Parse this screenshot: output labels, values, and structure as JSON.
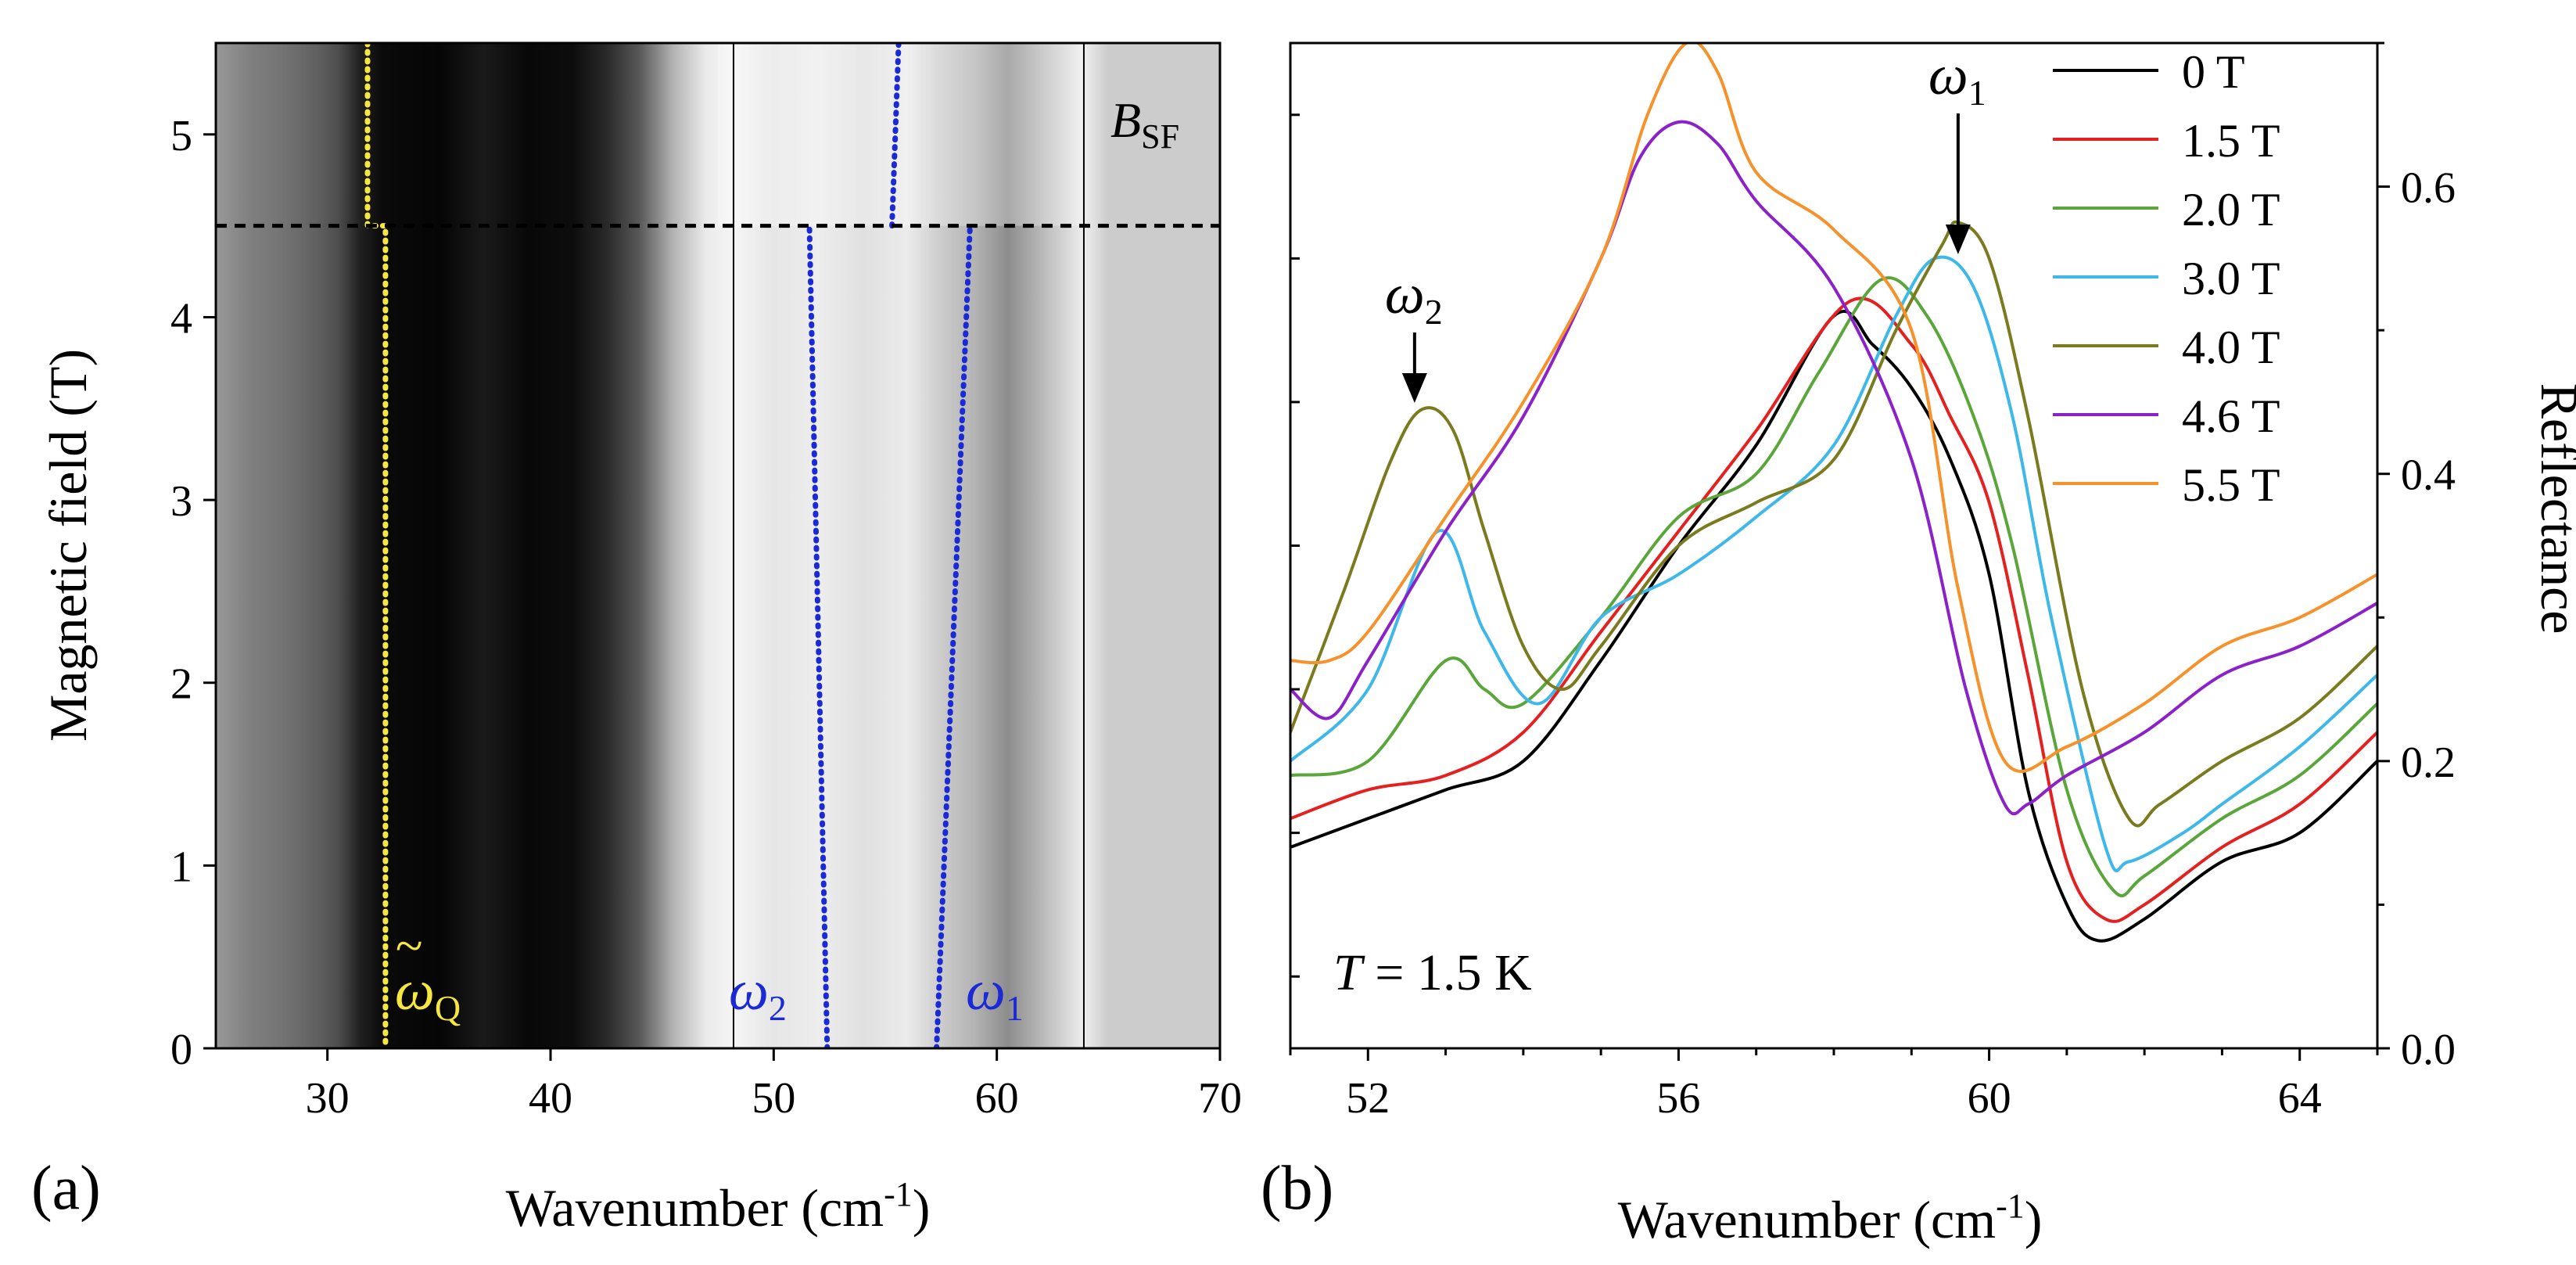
{
  "chart_data": [
    {
      "panel": "(a)",
      "type": "heatmap",
      "xlabel": "Wavenumber (cm",
      "xlabel_sup": "-1",
      "xlabel_close": ")",
      "ylabel": "Magnetic field (T)",
      "xlim": [
        25,
        70
      ],
      "ylim": [
        0,
        5.5
      ],
      "xticks": [
        30,
        40,
        50,
        60,
        70
      ],
      "yticks": [
        0,
        1,
        2,
        3,
        4,
        5
      ],
      "colormap": "grayscale (black = low, white = high)",
      "intensity_profile": [
        {
          "x": 25.0,
          "v": 0.6
        },
        {
          "x": 26.5,
          "v": 0.5
        },
        {
          "x": 28.0,
          "v": 0.45
        },
        {
          "x": 29.5,
          "v": 0.38
        },
        {
          "x": 30.5,
          "v": 0.3
        },
        {
          "x": 31.5,
          "v": 0.12
        },
        {
          "x": 32.5,
          "v": 0.04
        },
        {
          "x": 35.0,
          "v": 0.02
        },
        {
          "x": 37.0,
          "v": 0.1
        },
        {
          "x": 39.0,
          "v": 0.03
        },
        {
          "x": 41.0,
          "v": 0.05
        },
        {
          "x": 42.5,
          "v": 0.16
        },
        {
          "x": 44.0,
          "v": 0.35
        },
        {
          "x": 45.5,
          "v": 0.7
        },
        {
          "x": 47.0,
          "v": 0.92
        },
        {
          "x": 48.2,
          "v": 0.96
        },
        {
          "x": 50.0,
          "v": 0.9
        },
        {
          "x": 52.0,
          "v": 0.93
        },
        {
          "x": 54.0,
          "v": 0.88
        },
        {
          "x": 56.0,
          "v": 0.92
        },
        {
          "x": 57.5,
          "v": 0.8
        },
        {
          "x": 59.0,
          "v": 0.7
        },
        {
          "x": 60.5,
          "v": 0.55
        },
        {
          "x": 62.0,
          "v": 0.72
        },
        {
          "x": 63.9,
          "v": 0.93
        },
        {
          "x": 65.0,
          "v": 0.8
        },
        {
          "x": 70.0,
          "v": 0.8
        }
      ],
      "panel_dividers_x": [
        48.2,
        63.9
      ],
      "spin_flop_field": 4.5,
      "annotations": {
        "bsf": "B",
        "bsf_sub": "SF",
        "omega_q": "ω",
        "omega_q_sub": "Q",
        "omega_q_tilde": "~",
        "omega_2": "ω",
        "omega_2_sub": "2",
        "omega_1": "ω",
        "omega_1_sub": "1"
      },
      "mode_lines": [
        {
          "name": "omega_Q",
          "color": "#f5e642",
          "points": [
            [
              31.8,
              5.5
            ],
            [
              31.8,
              4.5
            ],
            [
              32.6,
              4.5
            ],
            [
              32.6,
              0
            ]
          ]
        },
        {
          "name": "omega_2",
          "color": "#1a2bd6",
          "points": [
            [
              52.4,
              0
            ],
            [
              51.6,
              4.5
            ]
          ]
        },
        {
          "name": "omega_1",
          "color": "#1a2bd6",
          "points": [
            [
              57.3,
              0
            ],
            [
              58.8,
              4.5
            ]
          ]
        },
        {
          "name": "omega_SF",
          "color": "#1a2bd6",
          "points": [
            [
              55.3,
              4.5
            ],
            [
              55.6,
              5.5
            ]
          ]
        }
      ]
    },
    {
      "panel": "(b)",
      "type": "line",
      "xlabel": "Wavenumber (cm",
      "xlabel_sup": "-1",
      "xlabel_close": ")",
      "ylabel": "Reflectance",
      "xlim": [
        51,
        65
      ],
      "ylim": [
        0,
        0.7
      ],
      "xticks": [
        52,
        56,
        60,
        64
      ],
      "yticks": [
        0.0,
        0.2,
        0.4,
        0.6
      ],
      "yaxis_side": "right",
      "annotation_temp": "T",
      "annotation_temp_value": " = 1.5 K",
      "arrow_omega2": {
        "label": "ω",
        "sub": "2",
        "x": 52.6
      },
      "arrow_omega1": {
        "label": "ω",
        "sub": "1",
        "x": 59.6
      },
      "legend_position": "top-right",
      "series": [
        {
          "name": "0 T",
          "color": "#000000",
          "points": [
            [
              51,
              0.14
            ],
            [
              52,
              0.16
            ],
            [
              53,
              0.18
            ],
            [
              54,
              0.2
            ],
            [
              55,
              0.27
            ],
            [
              56,
              0.35
            ],
            [
              57,
              0.42
            ],
            [
              58,
              0.51
            ],
            [
              58.5,
              0.49
            ],
            [
              59,
              0.46
            ],
            [
              59.5,
              0.41
            ],
            [
              60,
              0.33
            ],
            [
              60.5,
              0.18
            ],
            [
              61,
              0.1
            ],
            [
              61.4,
              0.075
            ],
            [
              62,
              0.09
            ],
            [
              63,
              0.13
            ],
            [
              64,
              0.15
            ],
            [
              65,
              0.2
            ]
          ]
        },
        {
          "name": "1.5 T",
          "color": "#e52020",
          "points": [
            [
              51,
              0.16
            ],
            [
              52,
              0.18
            ],
            [
              53,
              0.19
            ],
            [
              54,
              0.22
            ],
            [
              55,
              0.29
            ],
            [
              56,
              0.36
            ],
            [
              57,
              0.43
            ],
            [
              58.2,
              0.52
            ],
            [
              59,
              0.49
            ],
            [
              59.5,
              0.44
            ],
            [
              60,
              0.38
            ],
            [
              60.5,
              0.26
            ],
            [
              61,
              0.13
            ],
            [
              61.5,
              0.09
            ],
            [
              62,
              0.1
            ],
            [
              63,
              0.14
            ],
            [
              64,
              0.17
            ],
            [
              65,
              0.22
            ]
          ]
        },
        {
          "name": "2.0 T",
          "color": "#5aa63a",
          "points": [
            [
              51,
              0.19
            ],
            [
              52,
              0.2
            ],
            [
              53,
              0.27
            ],
            [
              53.5,
              0.25
            ],
            [
              54,
              0.24
            ],
            [
              55,
              0.3
            ],
            [
              56,
              0.37
            ],
            [
              57,
              0.4
            ],
            [
              57.8,
              0.47
            ],
            [
              58.6,
              0.535
            ],
            [
              59.2,
              0.51
            ],
            [
              59.8,
              0.44
            ],
            [
              60.3,
              0.35
            ],
            [
              61,
              0.18
            ],
            [
              61.6,
              0.11
            ],
            [
              62,
              0.12
            ],
            [
              63,
              0.16
            ],
            [
              64,
              0.19
            ],
            [
              65,
              0.24
            ]
          ]
        },
        {
          "name": "3.0 T",
          "color": "#3db8e8",
          "points": [
            [
              51,
              0.2
            ],
            [
              52,
              0.25
            ],
            [
              52.9,
              0.36
            ],
            [
              53.5,
              0.29
            ],
            [
              54.2,
              0.24
            ],
            [
              55,
              0.3
            ],
            [
              56,
              0.33
            ],
            [
              57,
              0.37
            ],
            [
              58,
              0.42
            ],
            [
              58.8,
              0.51
            ],
            [
              59.3,
              0.55
            ],
            [
              59.8,
              0.53
            ],
            [
              60.3,
              0.44
            ],
            [
              60.8,
              0.3
            ],
            [
              61.5,
              0.14
            ],
            [
              61.8,
              0.13
            ],
            [
              62.5,
              0.15
            ],
            [
              63,
              0.17
            ],
            [
              64,
              0.21
            ],
            [
              65,
              0.26
            ]
          ]
        },
        {
          "name": "4.0 T",
          "color": "#7a7a1e",
          "points": [
            [
              51,
              0.22
            ],
            [
              51.7,
              0.32
            ],
            [
              52.3,
              0.41
            ],
            [
              52.7,
              0.445
            ],
            [
              53.1,
              0.43
            ],
            [
              53.5,
              0.36
            ],
            [
              54,
              0.28
            ],
            [
              54.5,
              0.25
            ],
            [
              55,
              0.28
            ],
            [
              56,
              0.35
            ],
            [
              57,
              0.38
            ],
            [
              58,
              0.41
            ],
            [
              58.8,
              0.5
            ],
            [
              59.4,
              0.56
            ],
            [
              59.6,
              0.575
            ],
            [
              60,
              0.55
            ],
            [
              60.5,
              0.44
            ],
            [
              61.2,
              0.25
            ],
            [
              61.8,
              0.16
            ],
            [
              62.2,
              0.17
            ],
            [
              63,
              0.2
            ],
            [
              64,
              0.23
            ],
            [
              65,
              0.28
            ]
          ]
        },
        {
          "name": "4.6 T",
          "color": "#8b22c9",
          "points": [
            [
              51,
              0.25
            ],
            [
              51.5,
              0.23
            ],
            [
              52,
              0.27
            ],
            [
              53,
              0.36
            ],
            [
              54,
              0.44
            ],
            [
              55,
              0.55
            ],
            [
              55.5,
              0.62
            ],
            [
              56,
              0.645
            ],
            [
              56.5,
              0.63
            ],
            [
              57,
              0.59
            ],
            [
              58,
              0.53
            ],
            [
              59,
              0.41
            ],
            [
              59.7,
              0.25
            ],
            [
              60.2,
              0.17
            ],
            [
              60.5,
              0.17
            ],
            [
              61,
              0.19
            ],
            [
              62,
              0.22
            ],
            [
              63,
              0.26
            ],
            [
              64,
              0.28
            ],
            [
              65,
              0.31
            ]
          ]
        },
        {
          "name": "5.5 T",
          "color": "#f5922b",
          "points": [
            [
              51,
              0.27
            ],
            [
              51.5,
              0.27
            ],
            [
              52,
              0.29
            ],
            [
              53,
              0.37
            ],
            [
              54,
              0.45
            ],
            [
              55,
              0.55
            ],
            [
              55.6,
              0.65
            ],
            [
              56.1,
              0.7
            ],
            [
              56.5,
              0.68
            ],
            [
              57,
              0.61
            ],
            [
              58,
              0.57
            ],
            [
              59,
              0.5
            ],
            [
              59.6,
              0.32
            ],
            [
              60.2,
              0.2
            ],
            [
              61,
              0.21
            ],
            [
              62,
              0.24
            ],
            [
              63,
              0.28
            ],
            [
              64,
              0.3
            ],
            [
              65,
              0.33
            ]
          ]
        }
      ]
    }
  ]
}
